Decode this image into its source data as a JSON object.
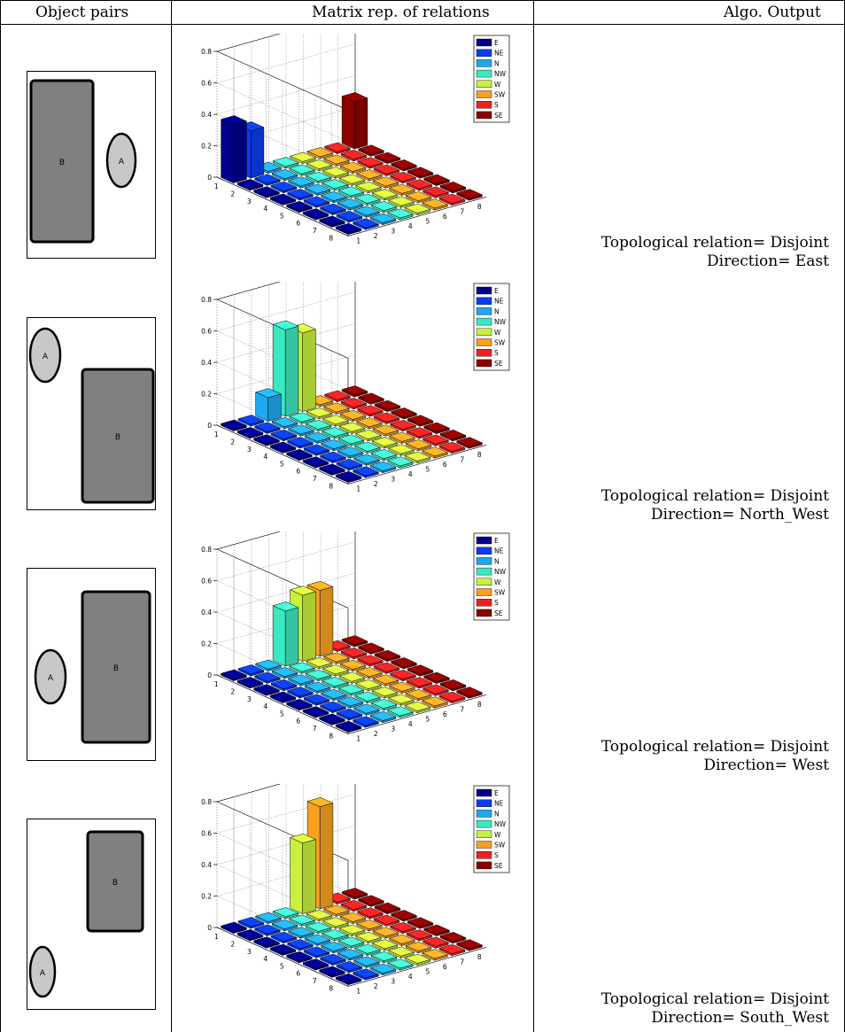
{
  "headers": {
    "col1": "Object pairs",
    "col2": "Matrix rep. of relations",
    "col3": "Algo. Output"
  },
  "legend": [
    "E",
    "NE",
    "N",
    "NW",
    "W",
    "SW",
    "S",
    "SE"
  ],
  "colors": {
    "E": "#00008b",
    "NE": "#0a3cf0",
    "N": "#1ea8f0",
    "NW": "#3ce8c0",
    "W": "#c8f03c",
    "SW": "#f8a020",
    "S": "#f02020",
    "SE": "#8b0000"
  },
  "rows": [
    {
      "shapes": {
        "A": "A",
        "B": "B"
      },
      "output": {
        "topo": "Topological relation= Disjoint",
        "dir": "Direction= East"
      },
      "chart_data": {
        "type": "bar3d",
        "x": [
          1,
          2,
          3,
          4,
          5,
          6,
          7,
          8
        ],
        "y": [
          1,
          2,
          3,
          4,
          5,
          6,
          7,
          8
        ],
        "zticks": [
          "0",
          "0.2",
          "0.4",
          "0.6",
          "0.8"
        ],
        "zlim": [
          0,
          0.8
        ],
        "nonzero": [
          {
            "x": 1,
            "y": 1,
            "value": 0.37
          },
          {
            "x": 1,
            "y": 2,
            "value": 0.3
          },
          {
            "x": 1,
            "y": 8,
            "value": 0.3
          }
        ]
      }
    },
    {
      "shapes": {
        "A": "A",
        "B": "B"
      },
      "output": {
        "topo": "Topological relation= Disjoint",
        "dir": "Direction= North_West"
      },
      "chart_data": {
        "type": "bar3d",
        "x": [
          1,
          2,
          3,
          4,
          5,
          6,
          7,
          8
        ],
        "y": [
          1,
          2,
          3,
          4,
          5,
          6,
          7,
          8
        ],
        "zticks": [
          "0",
          "0.2",
          "0.4",
          "0.6",
          "0.8"
        ],
        "zlim": [
          0,
          0.8
        ],
        "nonzero": [
          {
            "x": 1,
            "y": 3,
            "value": 0.15
          },
          {
            "x": 1,
            "y": 4,
            "value": 0.55
          },
          {
            "x": 1,
            "y": 5,
            "value": 0.5
          }
        ]
      }
    },
    {
      "shapes": {
        "A": "A",
        "B": "B"
      },
      "output": {
        "topo": "Topological relation= Disjoint",
        "dir": "Direction= West"
      },
      "chart_data": {
        "type": "bar3d",
        "x": [
          1,
          2,
          3,
          4,
          5,
          6,
          7,
          8
        ],
        "y": [
          1,
          2,
          3,
          4,
          5,
          6,
          7,
          8
        ],
        "zticks": [
          "0",
          "0.2",
          "0.4",
          "0.6",
          "0.8"
        ],
        "zlim": [
          0,
          0.8
        ],
        "nonzero": [
          {
            "x": 1,
            "y": 4,
            "value": 0.35
          },
          {
            "x": 1,
            "y": 5,
            "value": 0.42
          },
          {
            "x": 1,
            "y": 6,
            "value": 0.42
          }
        ]
      }
    },
    {
      "shapes": {
        "A": "A",
        "B": "B"
      },
      "output": {
        "topo": "Topological relation= Disjoint",
        "dir": "Direction= South_West"
      },
      "chart_data": {
        "type": "bar3d",
        "x": [
          1,
          2,
          3,
          4,
          5,
          6,
          7,
          8
        ],
        "y": [
          1,
          2,
          3,
          4,
          5,
          6,
          7,
          8
        ],
        "zticks": [
          "0",
          "0.2",
          "0.4",
          "0.6",
          "0.8"
        ],
        "zlim": [
          0,
          0.8
        ],
        "nonzero": [
          {
            "x": 1,
            "y": 5,
            "value": 0.45
          },
          {
            "x": 1,
            "y": 6,
            "value": 0.65
          }
        ]
      }
    }
  ]
}
